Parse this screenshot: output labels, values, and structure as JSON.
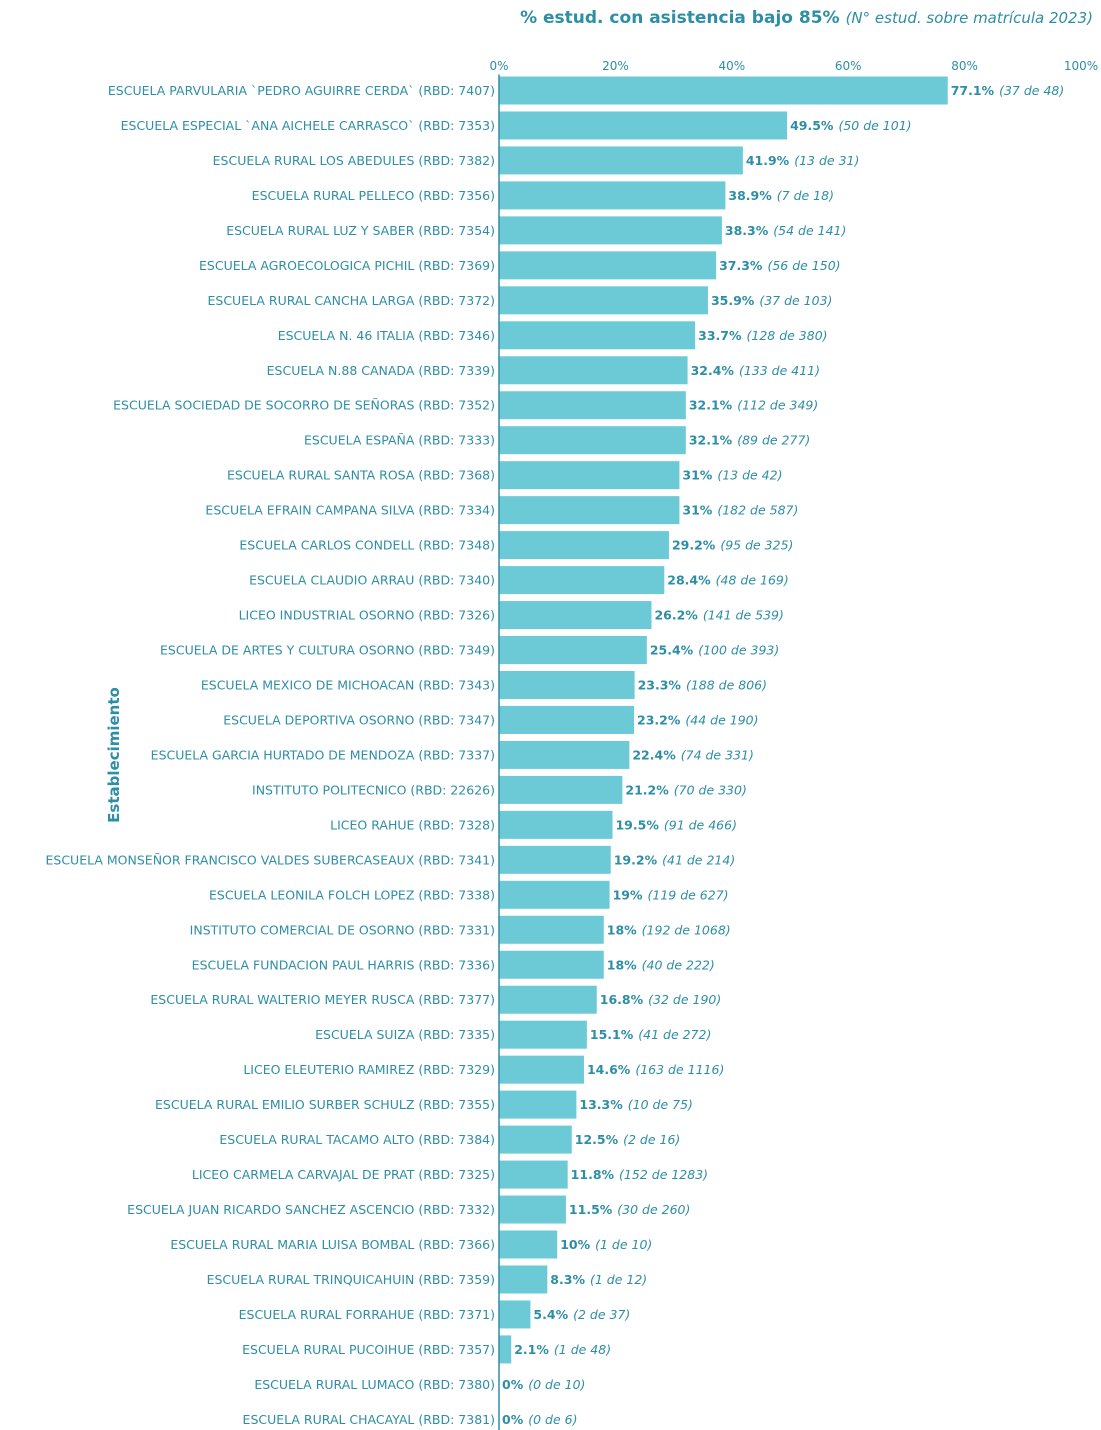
{
  "chart_data": {
    "type": "bar",
    "orientation": "horizontal",
    "title": "% estud. con asistencia bajo 85%",
    "subtitle": "(N° estud. sobre matrícula 2023)",
    "ylabel": "Establecimiento",
    "xlabel": "",
    "xlim": [
      0,
      100
    ],
    "x_ticks": [
      "0%",
      "20%",
      "40%",
      "60%",
      "80%",
      "100%"
    ],
    "bar_color": "#6ccad6",
    "text_color": "#2e8ea6",
    "grid": false,
    "categories": [
      "ESCUELA PARVULARIA `PEDRO AGUIRRE CERDA` (RBD: 7407)",
      "ESCUELA ESPECIAL `ANA AICHELE CARRASCO` (RBD: 7353)",
      "ESCUELA RURAL LOS ABEDULES (RBD: 7382)",
      "ESCUELA RURAL PELLECO (RBD: 7356)",
      "ESCUELA RURAL LUZ Y SABER (RBD: 7354)",
      "ESCUELA AGROECOLOGICA PICHIL (RBD: 7369)",
      "ESCUELA RURAL CANCHA LARGA (RBD: 7372)",
      "ESCUELA N. 46 ITALIA (RBD: 7346)",
      "ESCUELA N.88 CANADA (RBD: 7339)",
      "ESCUELA SOCIEDAD DE SOCORRO DE SEÑORAS (RBD: 7352)",
      "ESCUELA ESPAÑA (RBD: 7333)",
      "ESCUELA RURAL SANTA ROSA (RBD: 7368)",
      "ESCUELA EFRAIN CAMPANA SILVA (RBD: 7334)",
      "ESCUELA CARLOS CONDELL (RBD: 7348)",
      "ESCUELA CLAUDIO ARRAU (RBD: 7340)",
      "LICEO INDUSTRIAL OSORNO (RBD: 7326)",
      "ESCUELA DE ARTES Y CULTURA OSORNO (RBD: 7349)",
      "ESCUELA MEXICO DE MICHOACAN (RBD: 7343)",
      "ESCUELA DEPORTIVA OSORNO (RBD: 7347)",
      "ESCUELA GARCIA HURTADO DE MENDOZA (RBD: 7337)",
      "INSTITUTO POLITECNICO (RBD: 22626)",
      "LICEO RAHUE (RBD: 7328)",
      "ESCUELA MONSEÑOR FRANCISCO VALDES SUBERCASEAUX (RBD: 7341)",
      "ESCUELA LEONILA FOLCH LOPEZ (RBD: 7338)",
      "INSTITUTO COMERCIAL DE OSORNO (RBD: 7331)",
      "ESCUELA FUNDACION PAUL HARRIS (RBD: 7336)",
      "ESCUELA RURAL WALTERIO MEYER RUSCA (RBD: 7377)",
      "ESCUELA SUIZA (RBD: 7335)",
      "LICEO ELEUTERIO RAMIREZ (RBD: 7329)",
      "ESCUELA RURAL EMILIO SURBER SCHULZ (RBD: 7355)",
      "ESCUELA RURAL TACAMO ALTO (RBD: 7384)",
      "LICEO CARMELA CARVAJAL DE PRAT (RBD: 7325)",
      "ESCUELA JUAN RICARDO SANCHEZ ASCENCIO (RBD: 7332)",
      "ESCUELA RURAL MARIA LUISA BOMBAL (RBD: 7366)",
      "ESCUELA RURAL TRINQUICAHUIN (RBD: 7359)",
      "ESCUELA RURAL FORRAHUE (RBD: 7371)",
      "ESCUELA RURAL PUCOIHUE (RBD: 7357)",
      "ESCUELA RURAL LUMACO (RBD: 7380)",
      "ESCUELA RURAL CHACAYAL (RBD: 7381)"
    ],
    "values": [
      77.1,
      49.5,
      41.9,
      38.9,
      38.3,
      37.3,
      35.9,
      33.7,
      32.4,
      32.1,
      32.1,
      31,
      31,
      29.2,
      28.4,
      26.2,
      25.4,
      23.3,
      23.2,
      22.4,
      21.2,
      19.5,
      19.2,
      19,
      18,
      18,
      16.8,
      15.1,
      14.6,
      13.3,
      12.5,
      11.8,
      11.5,
      10,
      8.3,
      5.4,
      2.1,
      0,
      0
    ],
    "value_labels": [
      "77.1%",
      "49.5%",
      "41.9%",
      "38.9%",
      "38.3%",
      "37.3%",
      "35.9%",
      "33.7%",
      "32.4%",
      "32.1%",
      "32.1%",
      "31%",
      "31%",
      "29.2%",
      "28.4%",
      "26.2%",
      "25.4%",
      "23.3%",
      "23.2%",
      "22.4%",
      "21.2%",
      "19.5%",
      "19.2%",
      "19%",
      "18%",
      "18%",
      "16.8%",
      "15.1%",
      "14.6%",
      "13.3%",
      "12.5%",
      "11.8%",
      "11.5%",
      "10%",
      "8.3%",
      "5.4%",
      "2.1%",
      "0%",
      "0%"
    ],
    "count_labels": [
      "(37 de 48)",
      "(50 de 101)",
      "(13 de 31)",
      "(7 de 18)",
      "(54 de 141)",
      "(56 de 150)",
      "(37 de 103)",
      "(128 de 380)",
      "(133 de 411)",
      "(112 de 349)",
      "(89 de 277)",
      "(13 de 42)",
      "(182 de 587)",
      "(95 de 325)",
      "(48 de 169)",
      "(141 de 539)",
      "(100 de 393)",
      "(188 de 806)",
      "(44 de 190)",
      "(74 de 331)",
      "(70 de 330)",
      "(91 de 466)",
      "(41 de 214)",
      "(119 de 627)",
      "(192 de 1068)",
      "(40 de 222)",
      "(32 de 190)",
      "(41 de 272)",
      "(163 de 1116)",
      "(10 de 75)",
      "(2 de 16)",
      "(152 de 1283)",
      "(30 de 260)",
      "(1 de 10)",
      "(1 de 12)",
      "(2 de 37)",
      "(1 de 48)",
      "(0 de 10)",
      "(0 de 6)"
    ]
  }
}
